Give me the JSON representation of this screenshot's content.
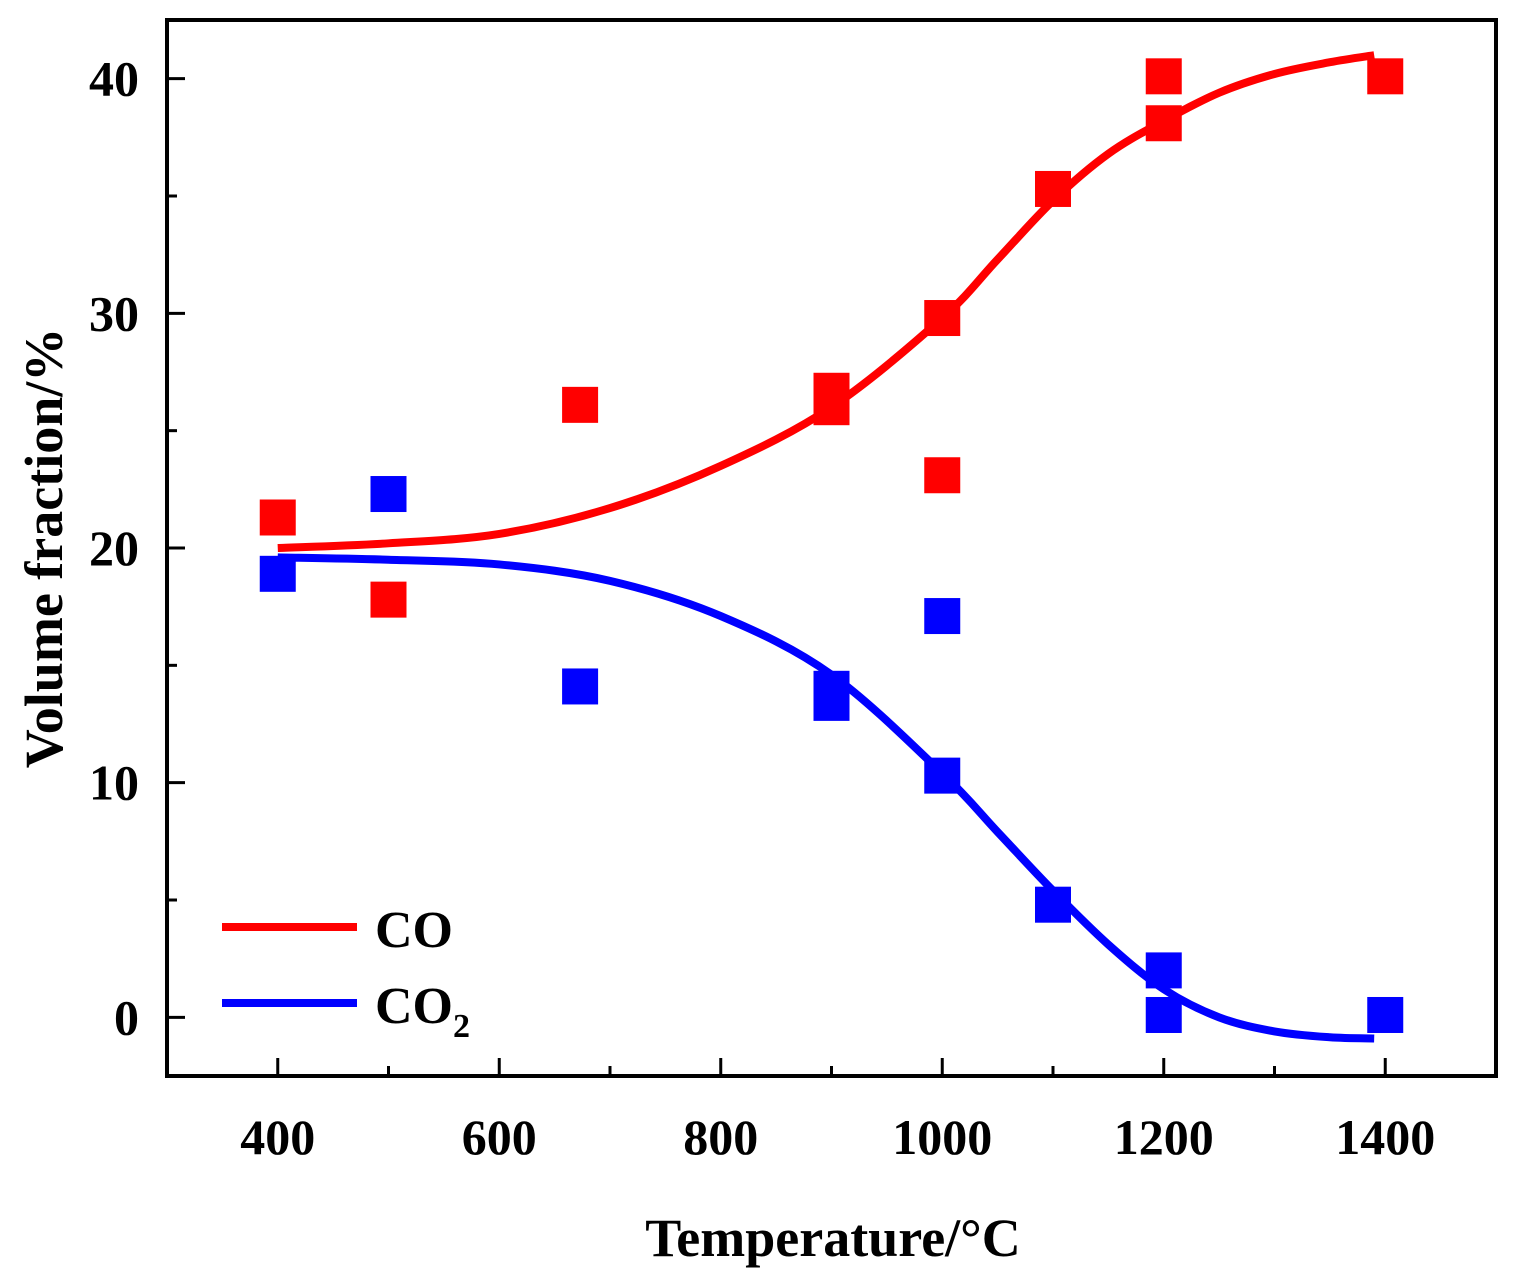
{
  "chart_data": {
    "type": "scatter",
    "xlabel": "Temperature/°C",
    "ylabel": "Volume fraction/%",
    "xlim": [
      300,
      1500
    ],
    "ylim": [
      -2.5,
      42.5
    ],
    "xticks": [
      400,
      600,
      800,
      1000,
      1200,
      1400
    ],
    "xticks_minor": [
      500,
      700,
      900,
      1100,
      1300
    ],
    "yticks": [
      0,
      10,
      20,
      30,
      40
    ],
    "yticks_minor": [
      5,
      15,
      25,
      35
    ],
    "xtick_labels": [
      "400",
      "600",
      "800",
      "1000",
      "1200",
      "1400"
    ],
    "ytick_labels": [
      "0",
      "10",
      "20",
      "30",
      "40"
    ],
    "legend_position": "bottom-left",
    "grid": false,
    "series": [
      {
        "name": "CO",
        "legend_main": "CO",
        "legend_sub": "",
        "color": "#ff0000",
        "points": [
          [
            400,
            21.3
          ],
          [
            500,
            17.8
          ],
          [
            673,
            26.1
          ],
          [
            900,
            26.7
          ],
          [
            900,
            26.0
          ],
          [
            1000,
            23.1
          ],
          [
            1000,
            29.8
          ],
          [
            1100,
            35.3
          ],
          [
            1200,
            38.1
          ],
          [
            1200,
            40.1
          ],
          [
            1400,
            40.1
          ]
        ],
        "fit": [
          [
            400,
            20.0
          ],
          [
            500,
            20.2
          ],
          [
            600,
            20.6
          ],
          [
            700,
            21.7
          ],
          [
            800,
            23.5
          ],
          [
            900,
            26.0
          ],
          [
            1000,
            29.8
          ],
          [
            1050,
            32.3
          ],
          [
            1100,
            34.8
          ],
          [
            1150,
            36.8
          ],
          [
            1200,
            38.2
          ],
          [
            1250,
            39.4
          ],
          [
            1300,
            40.2
          ],
          [
            1350,
            40.7
          ],
          [
            1390,
            41.0
          ]
        ]
      },
      {
        "name": "CO2",
        "legend_main": "CO",
        "legend_sub": "2",
        "color": "#0000ff",
        "points": [
          [
            400,
            18.9
          ],
          [
            500,
            22.3
          ],
          [
            673,
            14.1
          ],
          [
            900,
            13.4
          ],
          [
            900,
            14.0
          ],
          [
            1000,
            17.1
          ],
          [
            1000,
            10.3
          ],
          [
            1100,
            4.8
          ],
          [
            1200,
            2.0
          ],
          [
            1200,
            0.1
          ],
          [
            1400,
            0.1
          ]
        ],
        "fit": [
          [
            400,
            19.6
          ],
          [
            500,
            19.5
          ],
          [
            600,
            19.3
          ],
          [
            700,
            18.6
          ],
          [
            800,
            17.1
          ],
          [
            900,
            14.6
          ],
          [
            1000,
            10.4
          ],
          [
            1050,
            7.9
          ],
          [
            1100,
            5.4
          ],
          [
            1150,
            3.1
          ],
          [
            1200,
            1.2
          ],
          [
            1250,
            0.0
          ],
          [
            1300,
            -0.6
          ],
          [
            1350,
            -0.85
          ],
          [
            1390,
            -0.9
          ]
        ]
      }
    ]
  }
}
